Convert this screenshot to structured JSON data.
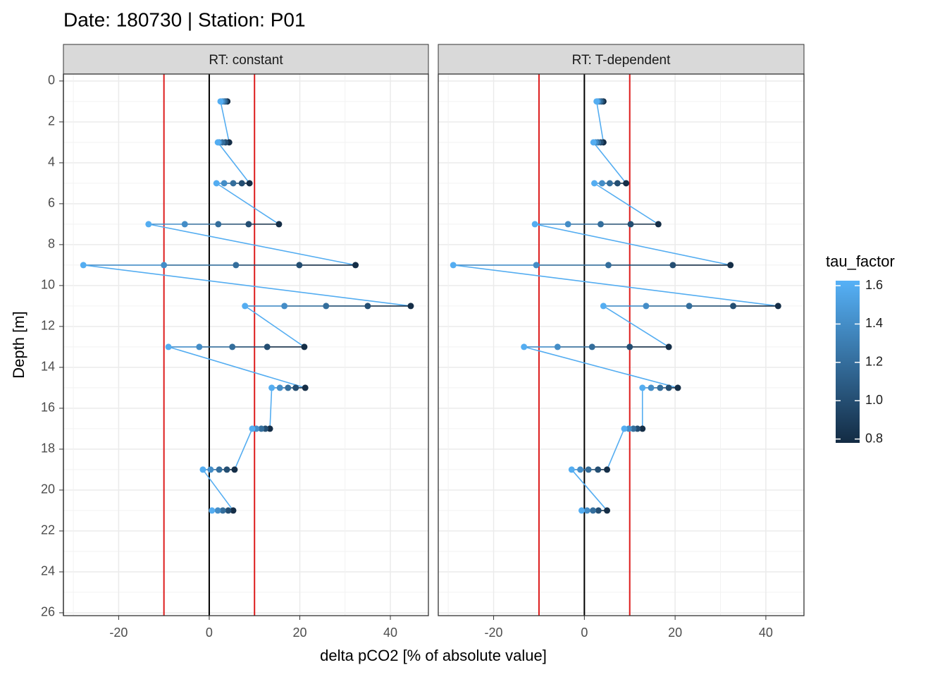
{
  "chart_data": {
    "type": "scatter",
    "title": "Date: 180730 | Station: P01",
    "x_label": "delta pCO2 [% of absolute value]",
    "y_label": "Depth [m]",
    "xlim": [
      -32.2,
      48.4
    ],
    "xticks": [
      -20,
      0,
      20,
      40
    ],
    "ylim": [
      -0.34,
      26.14
    ],
    "yticks": [
      0,
      2,
      4,
      6,
      8,
      10,
      12,
      14,
      16,
      18,
      20,
      22,
      24,
      26
    ],
    "y_reversed": true,
    "grid": true,
    "vlines": [
      {
        "value": -10,
        "color": "#dd1c1c"
      },
      {
        "value": 0,
        "color": "#000000"
      },
      {
        "value": 10,
        "color": "#dd1c1c"
      }
    ],
    "color_scale": {
      "title": "tau_factor",
      "low": "#132B43",
      "high": "#56B1F7",
      "lim": [
        0.78,
        1.626
      ],
      "ticks": [
        0.8,
        {
          "value": 1,
          "label": "1.0"
        },
        1.2,
        1.4,
        1.6
      ]
    },
    "depth": [
      1,
      3,
      5,
      7,
      9,
      11,
      13,
      15,
      17,
      19,
      21
    ],
    "tau_factor": [
      0.8,
      1.0,
      1.2,
      1.4,
      1.6
    ],
    "facets": [
      {
        "title": "RT: constant",
        "delta": [
          [
            4.0,
            3.6,
            3.3,
            2.9,
            2.5
          ],
          [
            4.4,
            3.6,
            2.9,
            2.2,
            1.9
          ],
          [
            8.9,
            7.2,
            5.3,
            3.3,
            1.6
          ],
          [
            15.4,
            8.7,
            2.0,
            -5.4,
            -13.4
          ],
          [
            32.3,
            19.9,
            5.9,
            -10.0,
            -27.8
          ],
          [
            44.5,
            35.0,
            25.8,
            16.6,
            7.9
          ],
          [
            21.0,
            12.8,
            5.1,
            -2.2,
            -9.0
          ],
          [
            21.2,
            19.1,
            17.4,
            15.6,
            13.8
          ],
          [
            13.4,
            12.4,
            11.5,
            10.4,
            9.5
          ],
          [
            5.6,
            3.9,
            2.2,
            0.3,
            -1.4
          ],
          [
            5.3,
            4.2,
            3.0,
            1.9,
            0.6
          ]
        ]
      },
      {
        "title": "RT: T-dependent",
        "delta": [
          [
            4.2,
            3.8,
            3.4,
            3.0,
            2.7
          ],
          [
            4.2,
            3.6,
            3.0,
            2.5,
            2.0
          ],
          [
            9.2,
            7.3,
            5.6,
            3.9,
            2.2
          ],
          [
            16.3,
            10.2,
            3.6,
            -3.6,
            -10.9
          ],
          [
            32.2,
            19.5,
            5.3,
            -10.6,
            -28.9
          ],
          [
            42.7,
            32.8,
            23.1,
            13.6,
            4.2
          ],
          [
            18.6,
            10.0,
            1.7,
            -5.9,
            -13.3
          ],
          [
            20.6,
            18.6,
            16.7,
            14.7,
            12.8
          ],
          [
            12.8,
            11.7,
            10.8,
            9.8,
            8.8
          ],
          [
            5.0,
            3.0,
            0.9,
            -0.9,
            -2.8
          ],
          [
            5.0,
            3.1,
            1.9,
            0.6,
            -0.6
          ]
        ]
      }
    ]
  }
}
